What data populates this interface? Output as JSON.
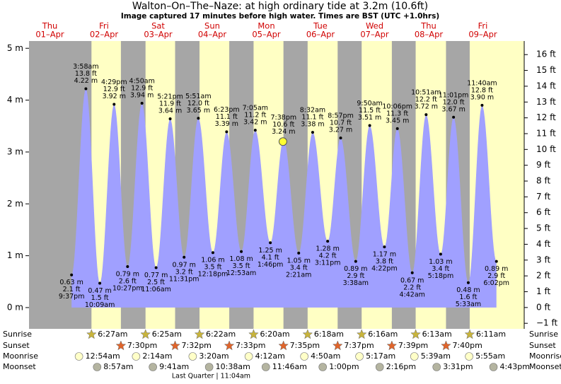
{
  "chart_data": {
    "type": "tide",
    "title": "Walton–On–The–Naze: at high  ordinary tide at 3.2m (10.6ft)",
    "subtitle": "Image captured 17 minutes before high water. Times are BST (UTC +1.0hrs)",
    "ylim": [
      -0.41,
      5.14
    ],
    "yticks": [
      {
        "value": 0,
        "label": "0 m"
      },
      {
        "value": 1,
        "label": "1 m"
      },
      {
        "value": 2,
        "label": "2 m"
      },
      {
        "value": 3,
        "label": "3 m"
      },
      {
        "value": 4,
        "label": "4 m"
      },
      {
        "value": 5,
        "label": "5 m"
      }
    ],
    "y2lim": [
      -1.35,
      16.86
    ],
    "y2ticks": [
      {
        "value": -1,
        "label": "−1 ft"
      },
      {
        "value": 0,
        "label": "0 ft"
      },
      {
        "value": 1,
        "label": "1 ft"
      },
      {
        "value": 2,
        "label": "2 ft"
      },
      {
        "value": 3,
        "label": "3 ft"
      },
      {
        "value": 4,
        "label": "4 ft"
      },
      {
        "value": 5,
        "label": "5 ft"
      },
      {
        "value": 6,
        "label": "6 ft"
      },
      {
        "value": 7,
        "label": "7 ft"
      },
      {
        "value": 8,
        "label": "8 ft"
      },
      {
        "value": 9,
        "label": "9 ft"
      },
      {
        "value": 10,
        "label": "10 ft"
      },
      {
        "value": 11,
        "label": "11 ft"
      },
      {
        "value": 12,
        "label": "12 ft"
      },
      {
        "value": 13,
        "label": "13 ft"
      },
      {
        "value": 14,
        "label": "14 ft"
      },
      {
        "value": 15,
        "label": "15 ft"
      },
      {
        "value": 16,
        "label": "16 ft"
      }
    ],
    "current": {
      "height_m": 3.2
    },
    "row_labels": [
      "Sunrise",
      "Sunset",
      "Moonrise",
      "Moonset"
    ],
    "moon_phase": "Last Quarter | 11:04am",
    "days": [
      {
        "name": "Thu",
        "date": "01–Apr",
        "tides": [
          {
            "time": "9:37pm",
            "m": 0.63,
            "m_label": "0.63 m",
            "ft": 2.1,
            "ft_label": "2.1 ft"
          }
        ]
      },
      {
        "name": "Fri",
        "date": "02–Apr",
        "sunrise": "6:27am",
        "sunset": "7:30pm",
        "moonrise": "12:54am",
        "moonset": "8:57am",
        "tides": [
          {
            "time": "3:58am",
            "m": 4.22,
            "m_label": "4.22 m",
            "ft": 13.8,
            "ft_label": "13.8 ft"
          },
          {
            "time": "10:09am",
            "m": 0.47,
            "m_label": "0.47 m",
            "ft": 1.5,
            "ft_label": "1.5 ft"
          },
          {
            "time": "4:29pm",
            "m": 3.92,
            "m_label": "3.92 m",
            "ft": 12.9,
            "ft_label": "12.9 ft"
          },
          {
            "time": "10:27pm",
            "m": 0.79,
            "m_label": "0.79 m",
            "ft": 2.6,
            "ft_label": "2.6 ft"
          }
        ]
      },
      {
        "name": "Sat",
        "date": "03–Apr",
        "sunrise": "6:25am",
        "sunset": "7:32pm",
        "moonrise": "2:14am",
        "moonset": "9:41am",
        "tides": [
          {
            "time": "4:50am",
            "m": 3.94,
            "m_label": "3.94 m",
            "ft": 12.9,
            "ft_label": "12.9 ft"
          },
          {
            "time": "11:06am",
            "m": 0.77,
            "m_label": "0.77 m",
            "ft": 2.5,
            "ft_label": "2.5 ft"
          },
          {
            "time": "5:21pm",
            "m": 3.64,
            "m_label": "3.64 m",
            "ft": 11.9,
            "ft_label": "11.9 ft"
          },
          {
            "time": "11:31pm",
            "m": 0.97,
            "m_label": "0.97 m",
            "ft": 3.2,
            "ft_label": "3.2 ft"
          }
        ]
      },
      {
        "name": "Sun",
        "date": "04–Apr",
        "sunrise": "6:22am",
        "sunset": "7:33pm",
        "moonrise": "3:20am",
        "moonset": "10:38am",
        "tides": [
          {
            "time": "5:51am",
            "m": 3.65,
            "m_label": "3.65 m",
            "ft": 12.0,
            "ft_label": "12.0 ft"
          },
          {
            "time": "12:18pm",
            "m": 1.06,
            "m_label": "1.06 m",
            "ft": 3.5,
            "ft_label": "3.5 ft"
          },
          {
            "time": "6:23pm",
            "m": 3.39,
            "m_label": "3.39 m",
            "ft": 11.1,
            "ft_label": "11.1 ft"
          }
        ]
      },
      {
        "name": "Mon",
        "date": "05–Apr",
        "sunrise": "6:20am",
        "sunset": "7:35pm",
        "moonrise": "4:12am",
        "moonset": "11:46am",
        "tides": [
          {
            "time": "12:53am",
            "m": 1.08,
            "m_label": "1.08 m",
            "ft": 3.5,
            "ft_label": "3.5 ft"
          },
          {
            "time": "7:05am",
            "m": 3.42,
            "m_label": "3.42 m",
            "ft": 11.2,
            "ft_label": "11.2 ft"
          },
          {
            "time": "1:46pm",
            "m": 1.25,
            "m_label": "1.25 m",
            "ft": 4.1,
            "ft_label": "4.1 ft"
          },
          {
            "time": "7:38pm",
            "m": 3.24,
            "m_label": "3.24 m",
            "ft": 10.6,
            "ft_label": "10.6 ft"
          }
        ]
      },
      {
        "name": "Tue",
        "date": "06–Apr",
        "sunrise": "6:18am",
        "sunset": "7:37pm",
        "moonrise": "4:50am",
        "moonset": "1:00pm",
        "tides": [
          {
            "time": "2:21am",
            "m": 1.05,
            "m_label": "1.05 m",
            "ft": 3.4,
            "ft_label": "3.4 ft"
          },
          {
            "time": "8:32am",
            "m": 3.38,
            "m_label": "3.38 m",
            "ft": 11.1,
            "ft_label": "11.1 ft"
          },
          {
            "time": "3:11pm",
            "m": 1.28,
            "m_label": "1.28 m",
            "ft": 4.2,
            "ft_label": "4.2 ft"
          },
          {
            "time": "8:57pm",
            "m": 3.27,
            "m_label": "3.27 m",
            "ft": 10.7,
            "ft_label": "10.7 ft"
          }
        ]
      },
      {
        "name": "Wed",
        "date": "07–Apr",
        "sunrise": "6:16am",
        "sunset": "7:39pm",
        "moonrise": "5:17am",
        "moonset": "2:16pm",
        "tides": [
          {
            "time": "3:38am",
            "m": 0.89,
            "m_label": "0.89 m",
            "ft": 2.9,
            "ft_label": "2.9 ft"
          },
          {
            "time": "9:50am",
            "m": 3.51,
            "m_label": "3.51 m",
            "ft": 11.5,
            "ft_label": "11.5 ft"
          },
          {
            "time": "4:22pm",
            "m": 1.17,
            "m_label": "1.17 m",
            "ft": 3.8,
            "ft_label": "3.8 ft"
          },
          {
            "time": "10:06pm",
            "m": 3.45,
            "m_label": "3.45 m",
            "ft": 11.3,
            "ft_label": "11.3 ft"
          }
        ]
      },
      {
        "name": "Thu",
        "date": "08–Apr",
        "sunrise": "6:13am",
        "sunset": "7:40pm",
        "moonrise": "5:39am",
        "moonset": "3:31pm",
        "tides": [
          {
            "time": "4:42am",
            "m": 0.67,
            "m_label": "0.67 m",
            "ft": 2.2,
            "ft_label": "2.2 ft"
          },
          {
            "time": "10:51am",
            "m": 3.72,
            "m_label": "3.72 m",
            "ft": 12.2,
            "ft_label": "12.2 ft"
          },
          {
            "time": "5:18pm",
            "m": 1.03,
            "m_label": "1.03 m",
            "ft": 3.4,
            "ft_label": "3.4 ft"
          },
          {
            "time": "11:01pm",
            "m": 3.67,
            "m_label": "3.67 m",
            "ft": 12.0,
            "ft_label": "12.0 ft"
          }
        ]
      },
      {
        "name": "Fri",
        "date": "09–Apr",
        "sunrise": "6:11am",
        "moonrise": "5:55am",
        "moonset": "4:43pm",
        "tides": [
          {
            "time": "5:33am",
            "m": 0.48,
            "m_label": "0.48 m",
            "ft": 1.6,
            "ft_label": "1.6 ft"
          },
          {
            "time": "11:40am",
            "m": 3.9,
            "m_label": "3.90 m",
            "ft": 12.8,
            "ft_label": "12.8 ft"
          },
          {
            "time": "6:02pm",
            "m": 0.89,
            "m_label": "0.89 m",
            "ft": 2.9,
            "ft_label": "2.9 ft"
          }
        ]
      }
    ]
  }
}
